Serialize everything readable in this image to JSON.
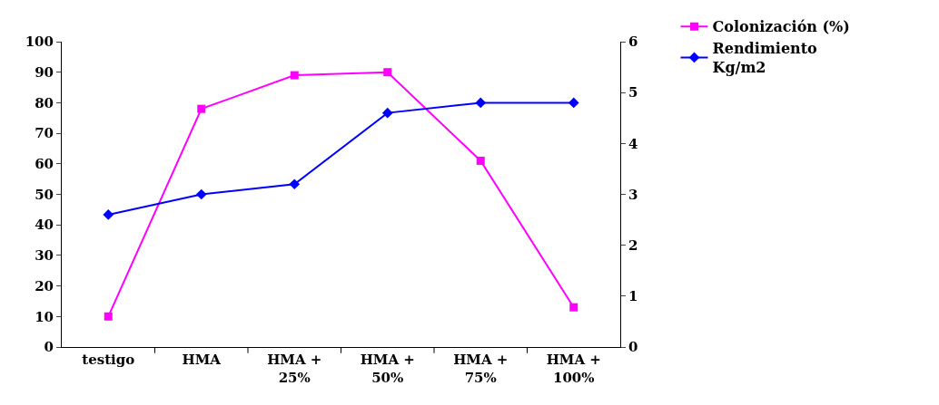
{
  "chart_data": {
    "type": "line",
    "categories": [
      "testigo",
      "HMA",
      "HMA + 25%",
      "HMA + 50%",
      "HMA + 75%",
      "HMA + 100%"
    ],
    "series": [
      {
        "name": "Colonización (%)",
        "color": "#ff00ff",
        "values": [
          10,
          78,
          89,
          90,
          61,
          13
        ],
        "marker": "square"
      },
      {
        "name": "Rendimiento Kg/m2",
        "color": "#0000ff",
        "values": [
          2.6,
          3.0,
          3.2,
          4.6,
          4.8,
          4.8
        ],
        "axis": "y2",
        "marker": "diamond"
      }
    ],
    "ylim": [
      0,
      100
    ],
    "yticks": [
      0,
      10,
      20,
      30,
      40,
      50,
      60,
      70,
      80,
      90,
      100
    ],
    "y2lim": [
      0,
      6
    ],
    "y2ticks": [
      0,
      1,
      2,
      3,
      4,
      5,
      6
    ],
    "legend": "top right"
  }
}
